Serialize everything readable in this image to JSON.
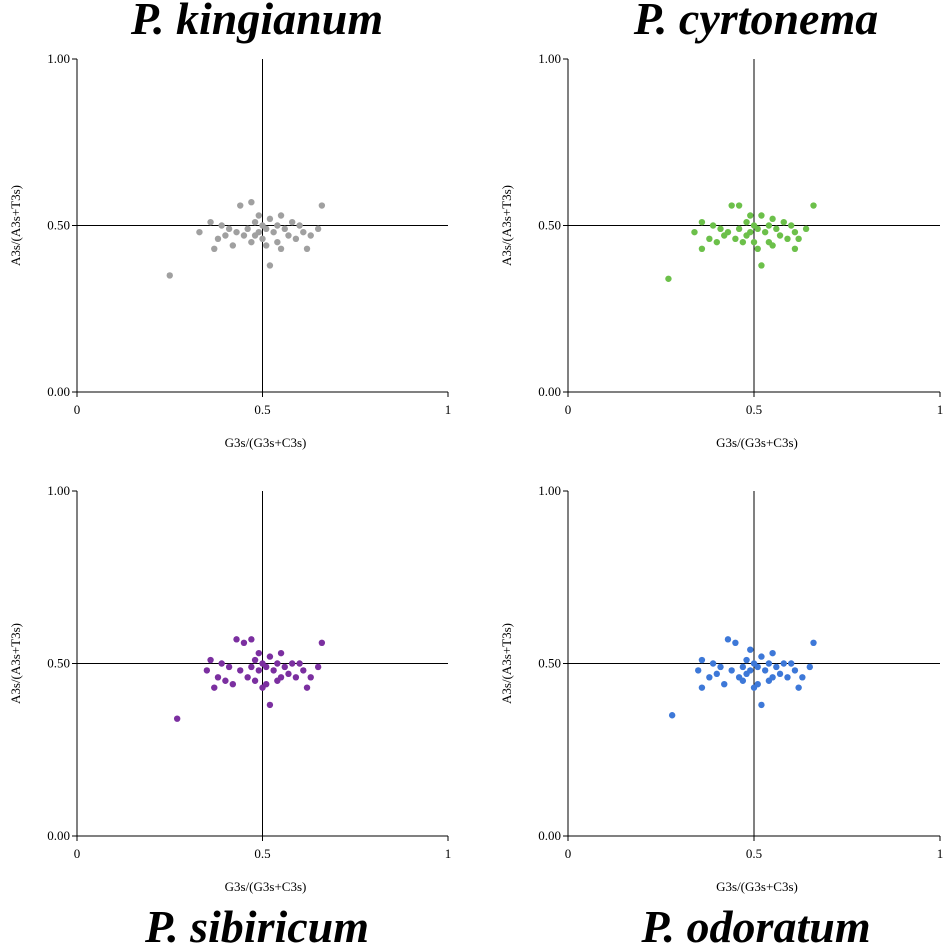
{
  "chart_data": [
    {
      "type": "scatter",
      "title": "P. kingianum",
      "color": "#a0a0a0",
      "xlabel": "G3s/(G3s+C3s)",
      "ylabel": "A3s/(A3s+T3s)",
      "xlim": [
        0,
        1
      ],
      "ylim": [
        0,
        1
      ],
      "xticks": [
        "0",
        "0.5",
        "1"
      ],
      "yticks": [
        "0.00",
        "0.50",
        "1.00"
      ],
      "points": [
        [
          0.25,
          0.35
        ],
        [
          0.33,
          0.48
        ],
        [
          0.36,
          0.51
        ],
        [
          0.37,
          0.43
        ],
        [
          0.38,
          0.46
        ],
        [
          0.39,
          0.5
        ],
        [
          0.4,
          0.47
        ],
        [
          0.41,
          0.49
        ],
        [
          0.42,
          0.44
        ],
        [
          0.43,
          0.48
        ],
        [
          0.44,
          0.56
        ],
        [
          0.45,
          0.47
        ],
        [
          0.46,
          0.49
        ],
        [
          0.47,
          0.57
        ],
        [
          0.47,
          0.45
        ],
        [
          0.48,
          0.51
        ],
        [
          0.48,
          0.47
        ],
        [
          0.49,
          0.53
        ],
        [
          0.49,
          0.48
        ],
        [
          0.5,
          0.5
        ],
        [
          0.5,
          0.46
        ],
        [
          0.51,
          0.49
        ],
        [
          0.51,
          0.44
        ],
        [
          0.52,
          0.38
        ],
        [
          0.52,
          0.52
        ],
        [
          0.53,
          0.48
        ],
        [
          0.54,
          0.5
        ],
        [
          0.54,
          0.45
        ],
        [
          0.55,
          0.53
        ],
        [
          0.55,
          0.43
        ],
        [
          0.56,
          0.49
        ],
        [
          0.57,
          0.47
        ],
        [
          0.58,
          0.51
        ],
        [
          0.59,
          0.46
        ],
        [
          0.6,
          0.5
        ],
        [
          0.61,
          0.48
        ],
        [
          0.62,
          0.43
        ],
        [
          0.63,
          0.47
        ],
        [
          0.65,
          0.49
        ],
        [
          0.66,
          0.56
        ]
      ]
    },
    {
      "type": "scatter",
      "title": "P. cyrtonema",
      "color": "#6cc04a",
      "xlabel": "G3s/(G3s+C3s)",
      "ylabel": "A3s/(A3s+T3s)",
      "xlim": [
        0,
        1
      ],
      "ylim": [
        0,
        1
      ],
      "xticks": [
        "0",
        "0.5",
        "1"
      ],
      "yticks": [
        "0.00",
        "0.50",
        "1.00"
      ],
      "points": [
        [
          0.27,
          0.34
        ],
        [
          0.34,
          0.48
        ],
        [
          0.36,
          0.51
        ],
        [
          0.36,
          0.43
        ],
        [
          0.38,
          0.46
        ],
        [
          0.39,
          0.5
        ],
        [
          0.4,
          0.45
        ],
        [
          0.41,
          0.49
        ],
        [
          0.42,
          0.47
        ],
        [
          0.43,
          0.48
        ],
        [
          0.44,
          0.56
        ],
        [
          0.45,
          0.46
        ],
        [
          0.46,
          0.49
        ],
        [
          0.46,
          0.56
        ],
        [
          0.47,
          0.45
        ],
        [
          0.48,
          0.51
        ],
        [
          0.48,
          0.47
        ],
        [
          0.49,
          0.53
        ],
        [
          0.49,
          0.48
        ],
        [
          0.5,
          0.5
        ],
        [
          0.5,
          0.45
        ],
        [
          0.51,
          0.49
        ],
        [
          0.51,
          0.43
        ],
        [
          0.52,
          0.38
        ],
        [
          0.52,
          0.53
        ],
        [
          0.53,
          0.48
        ],
        [
          0.54,
          0.5
        ],
        [
          0.54,
          0.45
        ],
        [
          0.55,
          0.52
        ],
        [
          0.55,
          0.44
        ],
        [
          0.56,
          0.49
        ],
        [
          0.57,
          0.47
        ],
        [
          0.58,
          0.51
        ],
        [
          0.59,
          0.46
        ],
        [
          0.6,
          0.5
        ],
        [
          0.61,
          0.48
        ],
        [
          0.61,
          0.43
        ],
        [
          0.62,
          0.46
        ],
        [
          0.64,
          0.49
        ],
        [
          0.66,
          0.56
        ]
      ]
    },
    {
      "type": "scatter",
      "title": "P. sibiricum",
      "color": "#7b2fa0",
      "xlabel": "G3s/(G3s+C3s)",
      "ylabel": "A3s/(A3s+T3s)",
      "xlim": [
        0,
        1
      ],
      "ylim": [
        0,
        1
      ],
      "xticks": [
        "0",
        "0.5",
        "1"
      ],
      "yticks": [
        "0.00",
        "0.50",
        "1.00"
      ],
      "points": [
        [
          0.27,
          0.34
        ],
        [
          0.35,
          0.48
        ],
        [
          0.36,
          0.51
        ],
        [
          0.37,
          0.43
        ],
        [
          0.38,
          0.46
        ],
        [
          0.39,
          0.5
        ],
        [
          0.4,
          0.45
        ],
        [
          0.41,
          0.49
        ],
        [
          0.42,
          0.44
        ],
        [
          0.43,
          0.57
        ],
        [
          0.44,
          0.48
        ],
        [
          0.45,
          0.56
        ],
        [
          0.46,
          0.46
        ],
        [
          0.47,
          0.57
        ],
        [
          0.47,
          0.49
        ],
        [
          0.48,
          0.51
        ],
        [
          0.48,
          0.45
        ],
        [
          0.49,
          0.53
        ],
        [
          0.49,
          0.48
        ],
        [
          0.5,
          0.5
        ],
        [
          0.5,
          0.43
        ],
        [
          0.51,
          0.49
        ],
        [
          0.51,
          0.44
        ],
        [
          0.52,
          0.38
        ],
        [
          0.52,
          0.52
        ],
        [
          0.53,
          0.48
        ],
        [
          0.54,
          0.5
        ],
        [
          0.54,
          0.45
        ],
        [
          0.55,
          0.53
        ],
        [
          0.55,
          0.46
        ],
        [
          0.56,
          0.49
        ],
        [
          0.57,
          0.47
        ],
        [
          0.58,
          0.5
        ],
        [
          0.59,
          0.46
        ],
        [
          0.6,
          0.5
        ],
        [
          0.61,
          0.48
        ],
        [
          0.62,
          0.43
        ],
        [
          0.63,
          0.46
        ],
        [
          0.65,
          0.49
        ],
        [
          0.66,
          0.56
        ]
      ]
    },
    {
      "type": "scatter",
      "title": "P. odoratum",
      "color": "#3d78d8",
      "xlabel": "G3s/(G3s+C3s)",
      "ylabel": "A3s/(A3s+T3s)",
      "xlim": [
        0,
        1
      ],
      "ylim": [
        0,
        1
      ],
      "xticks": [
        "0",
        "0.5",
        "1"
      ],
      "yticks": [
        "0.00",
        "0.50",
        "1.00"
      ],
      "points": [
        [
          0.28,
          0.35
        ],
        [
          0.35,
          0.48
        ],
        [
          0.36,
          0.51
        ],
        [
          0.36,
          0.43
        ],
        [
          0.38,
          0.46
        ],
        [
          0.39,
          0.5
        ],
        [
          0.4,
          0.47
        ],
        [
          0.41,
          0.49
        ],
        [
          0.42,
          0.44
        ],
        [
          0.43,
          0.57
        ],
        [
          0.44,
          0.48
        ],
        [
          0.45,
          0.56
        ],
        [
          0.46,
          0.46
        ],
        [
          0.47,
          0.49
        ],
        [
          0.47,
          0.45
        ],
        [
          0.48,
          0.51
        ],
        [
          0.48,
          0.47
        ],
        [
          0.49,
          0.54
        ],
        [
          0.49,
          0.48
        ],
        [
          0.5,
          0.5
        ],
        [
          0.5,
          0.43
        ],
        [
          0.51,
          0.49
        ],
        [
          0.51,
          0.44
        ],
        [
          0.52,
          0.38
        ],
        [
          0.52,
          0.52
        ],
        [
          0.53,
          0.48
        ],
        [
          0.54,
          0.5
        ],
        [
          0.54,
          0.45
        ],
        [
          0.55,
          0.53
        ],
        [
          0.55,
          0.46
        ],
        [
          0.56,
          0.49
        ],
        [
          0.57,
          0.47
        ],
        [
          0.58,
          0.5
        ],
        [
          0.59,
          0.46
        ],
        [
          0.6,
          0.5
        ],
        [
          0.61,
          0.48
        ],
        [
          0.62,
          0.43
        ],
        [
          0.63,
          0.46
        ],
        [
          0.65,
          0.49
        ],
        [
          0.66,
          0.56
        ]
      ]
    }
  ]
}
